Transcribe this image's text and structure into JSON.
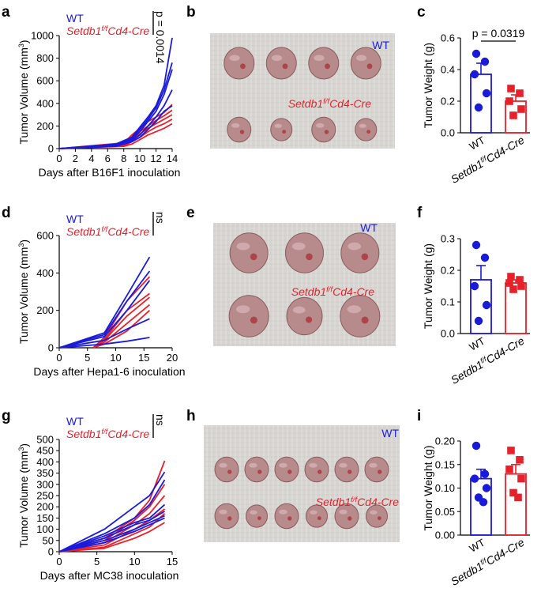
{
  "figure": {
    "wt_color": "#1a1adb",
    "cre_color": "#e8202a",
    "photo_bg": "#d7d5d1",
    "tumor_color": "#b78a8c"
  },
  "panels": [
    {
      "key": "a",
      "label": "a"
    },
    {
      "key": "b",
      "label": "b"
    },
    {
      "key": "c",
      "label": "c"
    },
    {
      "key": "d",
      "label": "d"
    },
    {
      "key": "e",
      "label": "e"
    },
    {
      "key": "f",
      "label": "f"
    },
    {
      "key": "g",
      "label": "g"
    },
    {
      "key": "h",
      "label": "h"
    },
    {
      "key": "i",
      "label": "i"
    }
  ],
  "photos": [
    {
      "key": "b",
      "wt_label": "WT",
      "cre_label_main": "Setdb1",
      "cre_label_sup": "f/f",
      "cre_label_tail": "Cd4-Cre"
    },
    {
      "key": "e",
      "wt_label": "WT",
      "cre_label_main": "Setdb1",
      "cre_label_sup": "f/f",
      "cre_label_tail": "Cd4-Cre"
    },
    {
      "key": "h",
      "wt_label": "WT",
      "cre_label_main": "Setdb1",
      "cre_label_sup": "f/f",
      "cre_label_tail": "Cd4-Cre"
    }
  ],
  "chart_data": [
    {
      "id": "a",
      "type": "line",
      "title": "",
      "xlabel": "Days after B16F1 inoculation",
      "ylabel": "Tumor Volume (mm3)",
      "ylabel_main": "Tumor Volume (mm",
      "ylabel_sup": "3",
      "ylabel_tail": ")",
      "xlim": [
        0,
        14
      ],
      "ylim": [
        0,
        1000
      ],
      "xticks": [
        "0",
        "2",
        "4",
        "6",
        "8",
        "10",
        "12",
        "14"
      ],
      "yticks": [
        "0",
        "200",
        "400",
        "600",
        "800",
        "1000"
      ],
      "legend": {
        "wt": "WT",
        "cre_main": "Setdb1",
        "cre_sup": "f/f",
        "cre_tail": "Cd4-Cre"
      },
      "stat": "p = 0.0014",
      "series": [
        {
          "name": "WT",
          "group": "wt",
          "x": [
            0,
            7,
            8,
            9,
            10,
            11,
            12,
            13,
            14
          ],
          "values": [
            0,
            40,
            70,
            100,
            190,
            280,
            380,
            560,
            980
          ]
        },
        {
          "name": "WT",
          "group": "wt",
          "x": [
            0,
            7,
            8,
            9,
            10,
            11,
            12,
            13,
            14
          ],
          "values": [
            0,
            35,
            60,
            90,
            170,
            260,
            360,
            520,
            760
          ]
        },
        {
          "name": "WT",
          "group": "wt",
          "x": [
            0,
            7,
            8,
            9,
            10,
            11,
            12,
            13,
            14
          ],
          "values": [
            0,
            30,
            50,
            80,
            150,
            240,
            330,
            480,
            700
          ]
        },
        {
          "name": "WT",
          "group": "wt",
          "x": [
            0,
            7,
            8,
            9,
            10,
            11,
            12,
            13,
            14
          ],
          "values": [
            0,
            25,
            45,
            70,
            120,
            200,
            280,
            380,
            520
          ]
        },
        {
          "name": "WT",
          "group": "wt",
          "x": [
            0,
            7,
            8,
            9,
            10,
            11,
            12,
            13,
            14
          ],
          "values": [
            0,
            20,
            40,
            60,
            100,
            170,
            240,
            330,
            380
          ]
        },
        {
          "name": "Setdb1f/fCd4-Cre",
          "group": "cre",
          "x": [
            0,
            8,
            9,
            10,
            11,
            12,
            13,
            14
          ],
          "values": [
            0,
            50,
            120,
            180,
            240,
            280,
            320,
            390
          ]
        },
        {
          "name": "Setdb1f/fCd4-Cre",
          "group": "cre",
          "x": [
            0,
            8,
            9,
            10,
            11,
            12,
            13,
            14
          ],
          "values": [
            0,
            40,
            100,
            150,
            200,
            250,
            290,
            340
          ]
        },
        {
          "name": "Setdb1f/fCd4-Cre",
          "group": "cre",
          "x": [
            0,
            8,
            9,
            10,
            11,
            12,
            13,
            14
          ],
          "values": [
            0,
            30,
            80,
            130,
            180,
            220,
            260,
            300
          ]
        },
        {
          "name": "Setdb1f/fCd4-Cre",
          "group": "cre",
          "x": [
            0,
            8,
            9,
            10,
            11,
            12,
            13,
            14
          ],
          "values": [
            0,
            25,
            60,
            100,
            150,
            190,
            220,
            260
          ]
        },
        {
          "name": "Setdb1f/fCd4-Cre",
          "group": "cre",
          "x": [
            0,
            8,
            9,
            10,
            11,
            12,
            13,
            14
          ],
          "values": [
            0,
            20,
            40,
            80,
            120,
            150,
            180,
            220
          ]
        }
      ]
    },
    {
      "id": "c",
      "type": "bar",
      "xlabel": "",
      "ylabel": "Tumor Weight (g)",
      "ylim": [
        0,
        0.6
      ],
      "yticks": [
        "0.0",
        "0.2",
        "0.4",
        "0.6"
      ],
      "categories": [
        "WT",
        "Setdb1f/fCd4-Cre"
      ],
      "cat_labels": [
        {
          "main": "WT"
        },
        {
          "main": "Setdb1",
          "sup": "f/f",
          "tail": "Cd4-Cre"
        }
      ],
      "values": [
        0.37,
        0.2
      ],
      "errors": [
        0.07,
        0.04
      ],
      "points": [
        [
          0.5,
          0.45,
          0.37,
          0.25,
          0.16
        ],
        [
          0.28,
          0.25,
          0.2,
          0.15,
          0.11
        ]
      ],
      "stat": "p = 0.0319"
    },
    {
      "id": "d",
      "type": "line",
      "xlabel": "Days after Hepa1-6 inoculation",
      "ylabel": "Tumor Volume (mm3)",
      "ylabel_main": "Tumor Volume (mm",
      "ylabel_sup": "3",
      "ylabel_tail": ")",
      "xlim": [
        0,
        20
      ],
      "ylim": [
        0,
        600
      ],
      "xticks": [
        "0",
        "5",
        "10",
        "15",
        "20"
      ],
      "yticks": [
        "0",
        "200",
        "400",
        "600"
      ],
      "legend": {
        "wt": "WT",
        "cre_main": "Setdb1",
        "cre_sup": "f/f",
        "cre_tail": "Cd4-Cre"
      },
      "stat": "ns",
      "series": [
        {
          "name": "WT",
          "group": "wt",
          "x": [
            0,
            8,
            12,
            16
          ],
          "values": [
            0,
            80,
            280,
            485
          ]
        },
        {
          "name": "WT",
          "group": "wt",
          "x": [
            0,
            8,
            12,
            16
          ],
          "values": [
            0,
            70,
            250,
            410
          ]
        },
        {
          "name": "WT",
          "group": "wt",
          "x": [
            0,
            8,
            12,
            16
          ],
          "values": [
            0,
            60,
            200,
            360
          ]
        },
        {
          "name": "WT",
          "group": "wt",
          "x": [
            0,
            8,
            12,
            16
          ],
          "values": [
            0,
            40,
            100,
            155
          ]
        },
        {
          "name": "WT",
          "group": "wt",
          "x": [
            0,
            8,
            12,
            16
          ],
          "values": [
            0,
            20,
            35,
            55
          ]
        },
        {
          "name": "Setdb1f/fCd4-Cre",
          "group": "cre",
          "x": [
            6,
            8,
            12,
            16
          ],
          "values": [
            0,
            55,
            250,
            380
          ]
        },
        {
          "name": "Setdb1f/fCd4-Cre",
          "group": "cre",
          "x": [
            6,
            8,
            12,
            16
          ],
          "values": [
            0,
            45,
            200,
            290
          ]
        },
        {
          "name": "Setdb1f/fCd4-Cre",
          "group": "cre",
          "x": [
            6,
            8,
            12,
            16
          ],
          "values": [
            0,
            40,
            170,
            270
          ]
        },
        {
          "name": "Setdb1f/fCd4-Cre",
          "group": "cre",
          "x": [
            6,
            8,
            12,
            16
          ],
          "values": [
            0,
            30,
            130,
            230
          ]
        },
        {
          "name": "Setdb1f/fCd4-Cre",
          "group": "cre",
          "x": [
            6,
            8,
            12,
            16
          ],
          "values": [
            0,
            20,
            90,
            200
          ]
        }
      ]
    },
    {
      "id": "f",
      "type": "bar",
      "xlabel": "",
      "ylabel": "Tumor Weight (g)",
      "ylim": [
        0,
        0.3
      ],
      "yticks": [
        "0.0",
        "0.1",
        "0.2",
        "0.3"
      ],
      "categories": [
        "WT",
        "Setdb1f/fCd4-Cre"
      ],
      "cat_labels": [
        {
          "main": "WT"
        },
        {
          "main": "Setdb1",
          "sup": "f/f",
          "tail": "Cd4-Cre"
        }
      ],
      "values": [
        0.17,
        0.16
      ],
      "errors": [
        0.045,
        0.01
      ],
      "points": [
        [
          0.28,
          0.24,
          0.15,
          0.09,
          0.04
        ],
        [
          0.18,
          0.17,
          0.16,
          0.15,
          0.14
        ]
      ],
      "stat": ""
    },
    {
      "id": "g",
      "type": "line",
      "xlabel": "Days after MC38 inoculation",
      "ylabel": "Tumor Volume (mm3)",
      "ylabel_main": "Tumor Volume (mm",
      "ylabel_sup": "3",
      "ylabel_tail": ")",
      "xlim": [
        0,
        15
      ],
      "ylim": [
        0,
        500
      ],
      "xticks": [
        "0",
        "5",
        "10",
        "15"
      ],
      "yticks": [
        "0",
        "50",
        "100",
        "150",
        "200",
        "250",
        "300",
        "350",
        "400",
        "450",
        "500"
      ],
      "legend": {
        "wt": "WT",
        "cre_main": "Setdb1",
        "cre_sup": "f/f",
        "cre_tail": "Cd4-Cre"
      },
      "stat": "ns",
      "series": [
        {
          "name": "WT",
          "group": "wt",
          "x": [
            0,
            6,
            10,
            12,
            14
          ],
          "values": [
            0,
            100,
            200,
            250,
            355
          ]
        },
        {
          "name": "WT",
          "group": "wt",
          "x": [
            0,
            6,
            10,
            12,
            14
          ],
          "values": [
            0,
            80,
            150,
            210,
            320
          ]
        },
        {
          "name": "WT",
          "group": "wt",
          "x": [
            0,
            6,
            10,
            12,
            14
          ],
          "values": [
            0,
            70,
            130,
            150,
            210
          ]
        },
        {
          "name": "WT",
          "group": "wt",
          "x": [
            0,
            6,
            10,
            12,
            14
          ],
          "values": [
            0,
            60,
            120,
            140,
            180
          ]
        },
        {
          "name": "WT",
          "group": "wt",
          "x": [
            0,
            6,
            10,
            12,
            14
          ],
          "values": [
            0,
            50,
            100,
            130,
            160
          ]
        },
        {
          "name": "WT",
          "group": "wt",
          "x": [
            0,
            6,
            10,
            12,
            14
          ],
          "values": [
            0,
            40,
            90,
            120,
            150
          ]
        },
        {
          "name": "Setdb1f/fCd4-Cre",
          "group": "cre",
          "x": [
            0,
            6,
            10,
            12,
            14
          ],
          "values": [
            0,
            60,
            150,
            230,
            405
          ]
        },
        {
          "name": "Setdb1f/fCd4-Cre",
          "group": "cre",
          "x": [
            0,
            6,
            10,
            12,
            14
          ],
          "values": [
            0,
            50,
            140,
            200,
            300
          ]
        },
        {
          "name": "Setdb1f/fCd4-Cre",
          "group": "cre",
          "x": [
            0,
            6,
            10,
            12,
            14
          ],
          "values": [
            0,
            40,
            120,
            170,
            250
          ]
        },
        {
          "name": "Setdb1f/fCd4-Cre",
          "group": "cre",
          "x": [
            0,
            6,
            10,
            12,
            14
          ],
          "values": [
            0,
            30,
            100,
            140,
            190
          ]
        },
        {
          "name": "Setdb1f/fCd4-Cre",
          "group": "cre",
          "x": [
            0,
            6,
            10,
            12,
            14
          ],
          "values": [
            0,
            20,
            80,
            110,
            170
          ]
        },
        {
          "name": "Setdb1f/fCd4-Cre",
          "group": "cre",
          "x": [
            0,
            6,
            10,
            12,
            14
          ],
          "values": [
            0,
            15,
            60,
            90,
            130
          ]
        }
      ]
    },
    {
      "id": "i",
      "type": "bar",
      "xlabel": "",
      "ylabel": "Tumor Weight (g)",
      "ylim": [
        0,
        0.2
      ],
      "yticks": [
        "0.00",
        "0.05",
        "0.10",
        "0.15",
        "0.20"
      ],
      "categories": [
        "WT",
        "Setdb1f/fCd4-Cre"
      ],
      "cat_labels": [
        {
          "main": "WT"
        },
        {
          "main": "Setdb1",
          "sup": "f/f",
          "tail": "Cd4-Cre"
        }
      ],
      "values": [
        0.12,
        0.13
      ],
      "errors": [
        0.02,
        0.02
      ],
      "points": [
        [
          0.19,
          0.13,
          0.12,
          0.1,
          0.08,
          0.07
        ],
        [
          0.18,
          0.16,
          0.14,
          0.12,
          0.09,
          0.08
        ]
      ],
      "stat": ""
    }
  ]
}
